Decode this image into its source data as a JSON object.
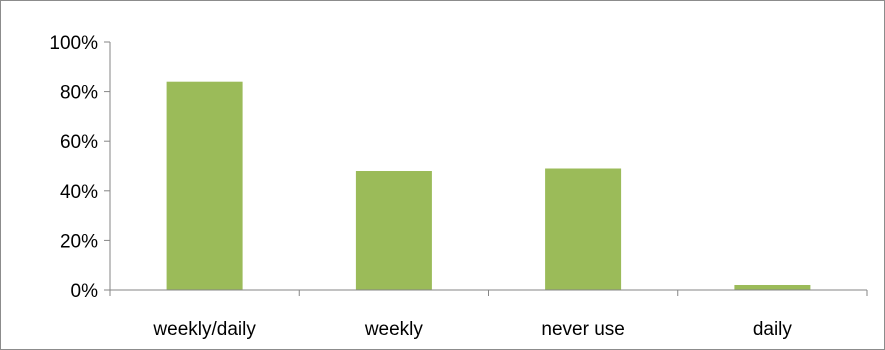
{
  "chart_data": {
    "type": "bar",
    "categories": [
      "weekly/daily",
      "weekly",
      "never use",
      "daily"
    ],
    "values": [
      84,
      48,
      49,
      2
    ],
    "value_format": "percent",
    "ylim": [
      0,
      100
    ],
    "yticks": [
      0,
      20,
      40,
      60,
      80,
      100
    ],
    "ytick_labels": [
      "0%",
      "20%",
      "40%",
      "60%",
      "80%",
      "100%"
    ],
    "title": "",
    "xlabel": "",
    "ylabel": "",
    "grid": false,
    "legend": "none",
    "bar_color": "#9bbb59",
    "axis_color": "#868686"
  }
}
